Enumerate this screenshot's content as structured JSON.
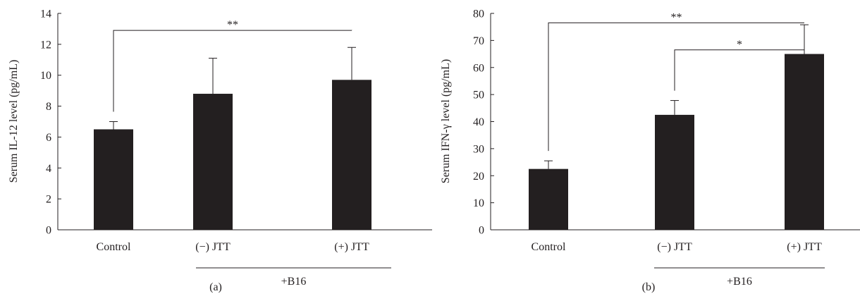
{
  "chart_data": [
    {
      "panel_label": "(a)",
      "type": "bar",
      "categories": [
        "Control",
        "(−) JTT",
        "(+) JTT"
      ],
      "values": [
        6.5,
        8.8,
        9.7
      ],
      "errors": [
        0.5,
        2.3,
        2.1
      ],
      "ylabel": "Serum IL-12 level (pg/mL)",
      "xlabel": "",
      "ylim": [
        0,
        14
      ],
      "yticks": [
        0,
        2,
        4,
        6,
        8,
        10,
        12,
        14
      ],
      "ytick_labels": [
        "0",
        "2",
        "4",
        "6",
        "8",
        "10",
        "12",
        "14"
      ],
      "group_label": "+B16",
      "group_members": [
        1,
        2
      ],
      "significance": [
        {
          "from": 0,
          "to": 2,
          "label": "**",
          "y": 12.9
        }
      ],
      "grid": false
    },
    {
      "panel_label": "(b)",
      "type": "bar",
      "categories": [
        "Control",
        "(−) JTT",
        "(+) JTT"
      ],
      "values": [
        22.5,
        42.5,
        65.0
      ],
      "errors": [
        3.0,
        5.3,
        10.8
      ],
      "ylabel": "Serum IFN-γ level (pg/mL)",
      "xlabel": "",
      "ylim": [
        0,
        80
      ],
      "yticks": [
        0,
        10,
        20,
        30,
        40,
        50,
        60,
        70,
        80
      ],
      "ytick_labels": [
        "0",
        "10",
        "20",
        "30",
        "40",
        "50",
        "60",
        "70",
        "80"
      ],
      "group_label": "+B16",
      "group_members": [
        1,
        2
      ],
      "significance": [
        {
          "from": 0,
          "to": 2,
          "label": "**",
          "y": 76.5
        },
        {
          "from": 1,
          "to": 2,
          "label": "*",
          "y": 66.5
        }
      ],
      "grid": false
    }
  ]
}
